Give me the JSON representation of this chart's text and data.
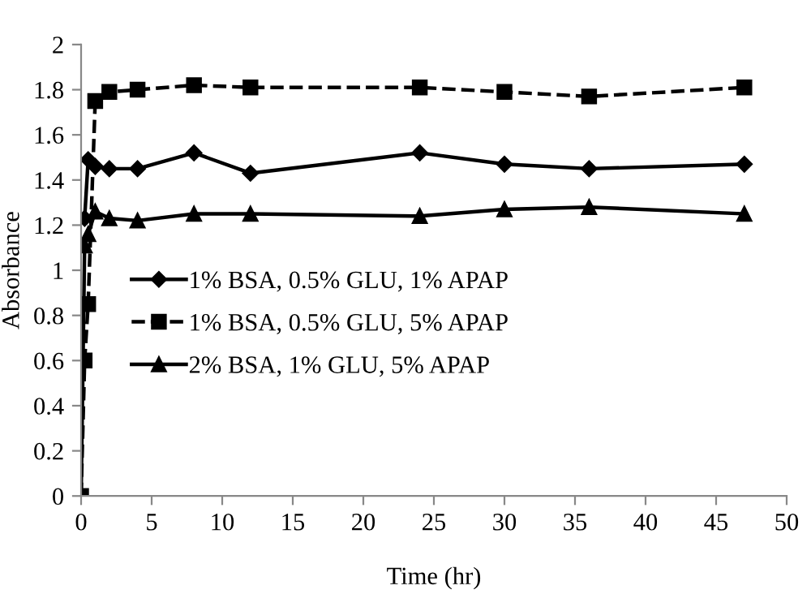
{
  "chart_data": {
    "type": "line",
    "xlabel": "Time (hr)",
    "ylabel": "Absorbance",
    "xlim": [
      0,
      50
    ],
    "ylim": [
      0,
      2
    ],
    "xticks": [
      0,
      5,
      10,
      15,
      20,
      25,
      30,
      35,
      40,
      45,
      50
    ],
    "yticks": [
      0,
      0.2,
      0.4,
      0.6,
      0.8,
      1,
      1.2,
      1.4,
      1.6,
      1.8,
      2
    ],
    "grid": false,
    "legend": "left",
    "series": [
      {
        "name": "1% BSA, 0.5% GLU, 1% APAP",
        "color": "#000000",
        "marker": "diamond",
        "line_style": "solid",
        "x": [
          0.25,
          0.5,
          1,
          2,
          4,
          8,
          12,
          24,
          30,
          36,
          47
        ],
        "values": [
          1.23,
          1.49,
          1.46,
          1.45,
          1.45,
          1.52,
          1.43,
          1.52,
          1.47,
          1.45,
          1.47
        ]
      },
      {
        "name": "1% BSA, 0.5% GLU, 5% APAP",
        "color": "#000000",
        "marker": "square",
        "line_style": "dashed",
        "x": [
          0,
          0.25,
          0.5,
          1,
          2,
          4,
          8,
          12,
          24,
          30,
          36,
          47
        ],
        "values": [
          0,
          0.6,
          0.85,
          1.75,
          1.79,
          1.8,
          1.82,
          1.81,
          1.81,
          1.79,
          1.77,
          1.81
        ]
      },
      {
        "name": "2% BSA, 1% GLU, 5% APAP",
        "color": "#000000",
        "marker": "triangle",
        "line_style": "solid",
        "x": [
          0,
          0.25,
          0.5,
          1,
          2,
          4,
          8,
          12,
          24,
          30,
          36,
          47
        ],
        "values": [
          0,
          1.11,
          1.16,
          1.26,
          1.23,
          1.22,
          1.25,
          1.25,
          1.24,
          1.27,
          1.28,
          1.25
        ]
      }
    ]
  }
}
